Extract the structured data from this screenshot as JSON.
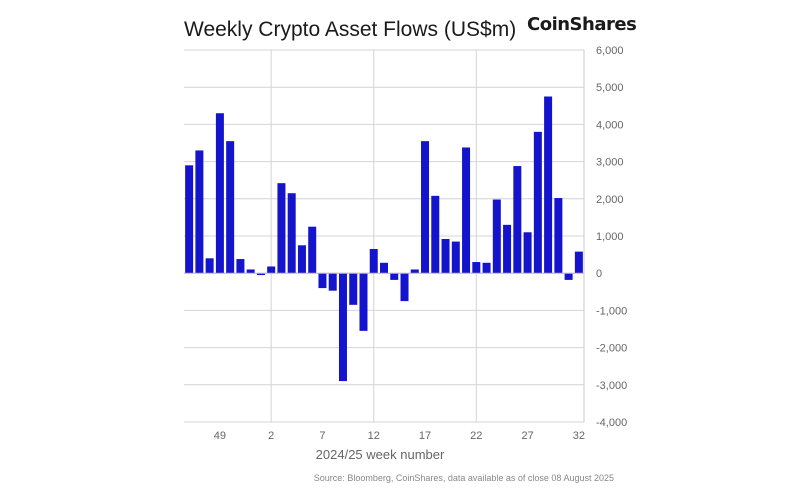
{
  "chart_data": {
    "type": "bar",
    "title": "Weekly Crypto Asset Flows (US$m)",
    "brand": "CoinShares",
    "xlabel": "2024/25 week number",
    "source": "Source: Bloomberg, CoinShares, data available as of close 08 August 2025",
    "ylim": [
      -4000,
      6000
    ],
    "y_ticks": [
      6000,
      5000,
      4000,
      3000,
      2000,
      1000,
      0,
      -1000,
      -2000,
      -3000,
      -4000
    ],
    "y_tick_labels": [
      "6,000",
      "5,000",
      "4,000",
      "3,000",
      "2,000",
      "1,000",
      "0",
      "-1,000",
      "-2,000",
      "-3,000",
      "-4,000"
    ],
    "x_tick_labels": [
      {
        "index": 3,
        "label": "49"
      },
      {
        "index": 8,
        "label": "2"
      },
      {
        "index": 13,
        "label": "7"
      },
      {
        "index": 18,
        "label": "12"
      },
      {
        "index": 23,
        "label": "17"
      },
      {
        "index": 28,
        "label": "22"
      },
      {
        "index": 33,
        "label": "27"
      },
      {
        "index": 38,
        "label": "32"
      }
    ],
    "vertical_gridlines_at_index": [
      8.5,
      18.5,
      28.5
    ],
    "bar_color": "#1414cc",
    "grid": true,
    "values": [
      2900,
      3300,
      400,
      4300,
      3550,
      380,
      100,
      -50,
      180,
      2420,
      2150,
      750,
      1250,
      -400,
      -470,
      -2900,
      -850,
      -1550,
      650,
      280,
      -180,
      -750,
      100,
      3550,
      2080,
      920,
      850,
      3380,
      300,
      280,
      1980,
      1300,
      2880,
      1100,
      3800,
      4750,
      2020,
      -180,
      580
    ]
  }
}
